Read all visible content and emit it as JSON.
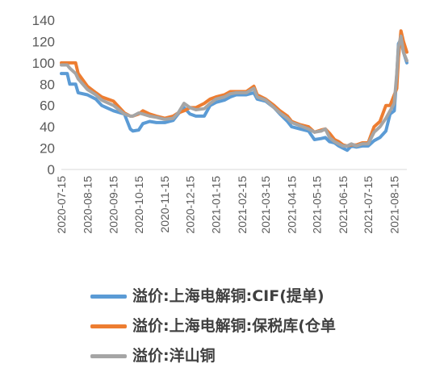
{
  "chart_data": {
    "type": "line",
    "title": "",
    "xlabel": "",
    "ylabel": "",
    "ylim": [
      0,
      140
    ],
    "yticks": [
      0,
      20,
      40,
      60,
      80,
      100,
      120,
      140
    ],
    "grid": false,
    "legend_position": "bottom",
    "x_tick_labels": [
      "2020-07-15",
      "2020-08-15",
      "2020-09-15",
      "2020-10-15",
      "2020-11-15",
      "2020-12-15",
      "2021-01-15",
      "2021-02-15",
      "2021-03-15",
      "2021-04-15",
      "2021-05-15",
      "2021-06-15",
      "2021-07-15",
      "2021-08-15"
    ],
    "x_range": [
      "2020-07-15",
      "2021-08-30"
    ],
    "series": [
      {
        "name": "溢价:上海电解铜:CIF(提单)",
        "color": "#5b9bd5",
        "points": [
          [
            "2020-07-15",
            90
          ],
          [
            "2020-07-22",
            90
          ],
          [
            "2020-07-25",
            80
          ],
          [
            "2020-08-01",
            80
          ],
          [
            "2020-08-04",
            72
          ],
          [
            "2020-08-15",
            70
          ],
          [
            "2020-08-25",
            66
          ],
          [
            "2020-09-01",
            60
          ],
          [
            "2020-09-15",
            55
          ],
          [
            "2020-09-28",
            52
          ],
          [
            "2020-10-05",
            38
          ],
          [
            "2020-10-08",
            36
          ],
          [
            "2020-10-15",
            37
          ],
          [
            "2020-10-20",
            43
          ],
          [
            "2020-10-28",
            45
          ],
          [
            "2020-11-05",
            44
          ],
          [
            "2020-11-15",
            44
          ],
          [
            "2020-11-25",
            46
          ],
          [
            "2020-12-01",
            52
          ],
          [
            "2020-12-08",
            58
          ],
          [
            "2020-12-15",
            52
          ],
          [
            "2020-12-22",
            50
          ],
          [
            "2021-01-01",
            50
          ],
          [
            "2021-01-08",
            60
          ],
          [
            "2021-01-15",
            63
          ],
          [
            "2021-01-25",
            65
          ],
          [
            "2021-02-01",
            68
          ],
          [
            "2021-02-08",
            70
          ],
          [
            "2021-02-20",
            70
          ],
          [
            "2021-03-01",
            72
          ],
          [
            "2021-03-05",
            66
          ],
          [
            "2021-03-15",
            64
          ],
          [
            "2021-03-25",
            58
          ],
          [
            "2021-04-01",
            52
          ],
          [
            "2021-04-10",
            45
          ],
          [
            "2021-04-15",
            40
          ],
          [
            "2021-04-25",
            38
          ],
          [
            "2021-05-05",
            36
          ],
          [
            "2021-05-12",
            28
          ],
          [
            "2021-05-20",
            29
          ],
          [
            "2021-05-25",
            30
          ],
          [
            "2021-05-30",
            26
          ],
          [
            "2021-06-05",
            25
          ],
          [
            "2021-06-10",
            22
          ],
          [
            "2021-06-15",
            20
          ],
          [
            "2021-06-20",
            18
          ],
          [
            "2021-06-25",
            22
          ],
          [
            "2021-07-01",
            21
          ],
          [
            "2021-07-08",
            22
          ],
          [
            "2021-07-15",
            22
          ],
          [
            "2021-07-22",
            27
          ],
          [
            "2021-07-29",
            30
          ],
          [
            "2021-08-05",
            36
          ],
          [
            "2021-08-10",
            52
          ],
          [
            "2021-08-15",
            55
          ],
          [
            "2021-08-18",
            88
          ],
          [
            "2021-08-20",
            118
          ],
          [
            "2021-08-23",
            122
          ],
          [
            "2021-08-26",
            110
          ],
          [
            "2021-08-30",
            100
          ]
        ]
      },
      {
        "name": "溢价:上海电解铜:保税库(仓单",
        "color": "#ed7d31",
        "points": [
          [
            "2020-07-15",
            100
          ],
          [
            "2020-07-22",
            100
          ],
          [
            "2020-07-25",
            100
          ],
          [
            "2020-08-01",
            100
          ],
          [
            "2020-08-04",
            90
          ],
          [
            "2020-08-15",
            78
          ],
          [
            "2020-08-25",
            72
          ],
          [
            "2020-09-01",
            68
          ],
          [
            "2020-09-15",
            64
          ],
          [
            "2020-09-28",
            53
          ],
          [
            "2020-10-05",
            50
          ],
          [
            "2020-10-08",
            50
          ],
          [
            "2020-10-15",
            52
          ],
          [
            "2020-10-20",
            55
          ],
          [
            "2020-10-28",
            52
          ],
          [
            "2020-11-05",
            50
          ],
          [
            "2020-11-15",
            48
          ],
          [
            "2020-11-25",
            50
          ],
          [
            "2020-12-01",
            53
          ],
          [
            "2020-12-08",
            55
          ],
          [
            "2020-12-15",
            58
          ],
          [
            "2020-12-22",
            58
          ],
          [
            "2021-01-01",
            62
          ],
          [
            "2021-01-08",
            66
          ],
          [
            "2021-01-15",
            68
          ],
          [
            "2021-01-25",
            70
          ],
          [
            "2021-02-01",
            73
          ],
          [
            "2021-02-08",
            73
          ],
          [
            "2021-02-20",
            73
          ],
          [
            "2021-03-01",
            78
          ],
          [
            "2021-03-05",
            70
          ],
          [
            "2021-03-15",
            66
          ],
          [
            "2021-03-25",
            60
          ],
          [
            "2021-04-01",
            55
          ],
          [
            "2021-04-10",
            50
          ],
          [
            "2021-04-15",
            45
          ],
          [
            "2021-04-25",
            42
          ],
          [
            "2021-05-05",
            40
          ],
          [
            "2021-05-12",
            35
          ],
          [
            "2021-05-20",
            37
          ],
          [
            "2021-05-25",
            38
          ],
          [
            "2021-05-30",
            34
          ],
          [
            "2021-06-05",
            28
          ],
          [
            "2021-06-10",
            26
          ],
          [
            "2021-06-15",
            23
          ],
          [
            "2021-06-20",
            22
          ],
          [
            "2021-06-25",
            23
          ],
          [
            "2021-07-01",
            23
          ],
          [
            "2021-07-08",
            25
          ],
          [
            "2021-07-15",
            25
          ],
          [
            "2021-07-22",
            40
          ],
          [
            "2021-07-29",
            45
          ],
          [
            "2021-08-05",
            60
          ],
          [
            "2021-08-10",
            60
          ],
          [
            "2021-08-15",
            70
          ],
          [
            "2021-08-18",
            76
          ],
          [
            "2021-08-20",
            105
          ],
          [
            "2021-08-23",
            130
          ],
          [
            "2021-08-26",
            120
          ],
          [
            "2021-08-30",
            110
          ]
        ]
      },
      {
        "name": "溢价:洋山铜",
        "color": "#a5a5a5",
        "points": [
          [
            "2020-07-15",
            98
          ],
          [
            "2020-07-22",
            98
          ],
          [
            "2020-07-25",
            95
          ],
          [
            "2020-08-01",
            90
          ],
          [
            "2020-08-04",
            85
          ],
          [
            "2020-08-15",
            75
          ],
          [
            "2020-08-25",
            70
          ],
          [
            "2020-09-01",
            65
          ],
          [
            "2020-09-15",
            60
          ],
          [
            "2020-09-28",
            52
          ],
          [
            "2020-10-05",
            50
          ],
          [
            "2020-10-08",
            50
          ],
          [
            "2020-10-15",
            53
          ],
          [
            "2020-10-20",
            52
          ],
          [
            "2020-10-28",
            50
          ],
          [
            "2020-11-05",
            49
          ],
          [
            "2020-11-15",
            47
          ],
          [
            "2020-11-25",
            48
          ],
          [
            "2020-12-01",
            53
          ],
          [
            "2020-12-08",
            62
          ],
          [
            "2020-12-15",
            58
          ],
          [
            "2020-12-22",
            56
          ],
          [
            "2021-01-01",
            57
          ],
          [
            "2021-01-08",
            62
          ],
          [
            "2021-01-15",
            66
          ],
          [
            "2021-01-25",
            68
          ],
          [
            "2021-02-01",
            71
          ],
          [
            "2021-02-08",
            72
          ],
          [
            "2021-02-20",
            72
          ],
          [
            "2021-03-01",
            76
          ],
          [
            "2021-03-05",
            68
          ],
          [
            "2021-03-15",
            65
          ],
          [
            "2021-03-25",
            58
          ],
          [
            "2021-04-01",
            53
          ],
          [
            "2021-04-10",
            48
          ],
          [
            "2021-04-15",
            44
          ],
          [
            "2021-04-25",
            41
          ],
          [
            "2021-05-05",
            38
          ],
          [
            "2021-05-12",
            35
          ],
          [
            "2021-05-20",
            36
          ],
          [
            "2021-05-25",
            38
          ],
          [
            "2021-05-30",
            30
          ],
          [
            "2021-06-05",
            26
          ],
          [
            "2021-06-10",
            24
          ],
          [
            "2021-06-15",
            22
          ],
          [
            "2021-06-20",
            22
          ],
          [
            "2021-06-25",
            24
          ],
          [
            "2021-07-01",
            22
          ],
          [
            "2021-07-08",
            24
          ],
          [
            "2021-07-15",
            24
          ],
          [
            "2021-07-22",
            35
          ],
          [
            "2021-07-29",
            40
          ],
          [
            "2021-08-05",
            48
          ],
          [
            "2021-08-10",
            55
          ],
          [
            "2021-08-15",
            62
          ],
          [
            "2021-08-18",
            90
          ],
          [
            "2021-08-20",
            115
          ],
          [
            "2021-08-23",
            125
          ],
          [
            "2021-08-26",
            110
          ],
          [
            "2021-08-30",
            102
          ]
        ]
      }
    ]
  }
}
